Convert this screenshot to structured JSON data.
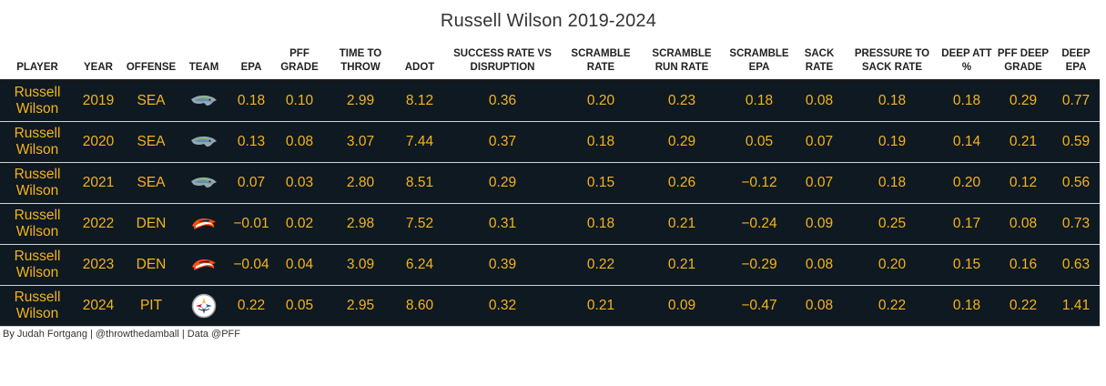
{
  "chart_data": {
    "type": "table",
    "title": "Russell Wilson 2019-2024",
    "columns": [
      {
        "key": "player",
        "label": "PLAYER"
      },
      {
        "key": "year",
        "label": "YEAR"
      },
      {
        "key": "offense",
        "label": "OFFENSE"
      },
      {
        "key": "team",
        "label": "TEAM"
      },
      {
        "key": "epa",
        "label": "EPA"
      },
      {
        "key": "pff_grade",
        "label": "PFF GRADE"
      },
      {
        "key": "time_to_throw",
        "label": "TIME TO THROW"
      },
      {
        "key": "adot",
        "label": "ADOT"
      },
      {
        "key": "success_rate_vs_disruption",
        "label": "SUCCESS RATE VS DISRUPTION"
      },
      {
        "key": "scramble_rate",
        "label": "SCRAMBLE RATE"
      },
      {
        "key": "scramble_run_rate",
        "label": "SCRAMBLE RUN RATE"
      },
      {
        "key": "scramble_epa",
        "label": "SCRAMBLE EPA"
      },
      {
        "key": "sack_rate",
        "label": "SACK RATE"
      },
      {
        "key": "pressure_to_sack_rate",
        "label": "PRESSURE TO SACK RATE"
      },
      {
        "key": "deep_att_pct",
        "label": "DEEP ATT %"
      },
      {
        "key": "pff_deep_grade",
        "label": "PFF DEEP GRADE"
      },
      {
        "key": "deep_epa",
        "label": "DEEP EPA"
      }
    ],
    "rows": [
      {
        "player": "Russell Wilson",
        "year": "2019",
        "offense": "SEA",
        "team_logo": "seahawks-logo-icon",
        "epa": "0.18",
        "pff_grade": "0.10",
        "time_to_throw": "2.99",
        "adot": "8.12",
        "success_rate_vs_disruption": "0.36",
        "scramble_rate": "0.20",
        "scramble_run_rate": "0.23",
        "scramble_epa": "0.18",
        "sack_rate": "0.08",
        "pressure_to_sack_rate": "0.18",
        "deep_att_pct": "0.18",
        "pff_deep_grade": "0.29",
        "deep_epa": "0.77"
      },
      {
        "player": "Russell Wilson",
        "year": "2020",
        "offense": "SEA",
        "team_logo": "seahawks-logo-icon",
        "epa": "0.13",
        "pff_grade": "0.08",
        "time_to_throw": "3.07",
        "adot": "7.44",
        "success_rate_vs_disruption": "0.37",
        "scramble_rate": "0.18",
        "scramble_run_rate": "0.29",
        "scramble_epa": "0.05",
        "sack_rate": "0.07",
        "pressure_to_sack_rate": "0.19",
        "deep_att_pct": "0.14",
        "pff_deep_grade": "0.21",
        "deep_epa": "0.59"
      },
      {
        "player": "Russell Wilson",
        "year": "2021",
        "offense": "SEA",
        "team_logo": "seahawks-logo-icon",
        "epa": "0.07",
        "pff_grade": "0.03",
        "time_to_throw": "2.80",
        "adot": "8.51",
        "success_rate_vs_disruption": "0.29",
        "scramble_rate": "0.15",
        "scramble_run_rate": "0.26",
        "scramble_epa": "−0.12",
        "sack_rate": "0.07",
        "pressure_to_sack_rate": "0.18",
        "deep_att_pct": "0.20",
        "pff_deep_grade": "0.12",
        "deep_epa": "0.56"
      },
      {
        "player": "Russell Wilson",
        "year": "2022",
        "offense": "DEN",
        "team_logo": "broncos-logo-icon",
        "epa": "−0.01",
        "pff_grade": "0.02",
        "time_to_throw": "2.98",
        "adot": "7.52",
        "success_rate_vs_disruption": "0.31",
        "scramble_rate": "0.18",
        "scramble_run_rate": "0.21",
        "scramble_epa": "−0.24",
        "sack_rate": "0.09",
        "pressure_to_sack_rate": "0.25",
        "deep_att_pct": "0.17",
        "pff_deep_grade": "0.08",
        "deep_epa": "0.73"
      },
      {
        "player": "Russell Wilson",
        "year": "2023",
        "offense": "DEN",
        "team_logo": "broncos-logo-icon",
        "epa": "−0.04",
        "pff_grade": "0.04",
        "time_to_throw": "3.09",
        "adot": "6.24",
        "success_rate_vs_disruption": "0.39",
        "scramble_rate": "0.22",
        "scramble_run_rate": "0.21",
        "scramble_epa": "−0.29",
        "sack_rate": "0.08",
        "pressure_to_sack_rate": "0.20",
        "deep_att_pct": "0.15",
        "pff_deep_grade": "0.16",
        "deep_epa": "0.63"
      },
      {
        "player": "Russell Wilson",
        "year": "2024",
        "offense": "PIT",
        "team_logo": "steelers-logo-icon",
        "epa": "0.22",
        "pff_grade": "0.05",
        "time_to_throw": "2.95",
        "adot": "8.60",
        "success_rate_vs_disruption": "0.32",
        "scramble_rate": "0.21",
        "scramble_run_rate": "0.09",
        "scramble_epa": "−0.47",
        "sack_rate": "0.08",
        "pressure_to_sack_rate": "0.22",
        "deep_att_pct": "0.18",
        "pff_deep_grade": "0.22",
        "deep_epa": "1.41"
      }
    ],
    "colors": {
      "row_background": "#0f1922",
      "value_text": "#f4b41b",
      "header_text": "#222222",
      "row_divider": "#cfd3d6"
    }
  },
  "footer": {
    "credit": "By Judah Fortgang | @throwthedamball | Data @PFF"
  }
}
